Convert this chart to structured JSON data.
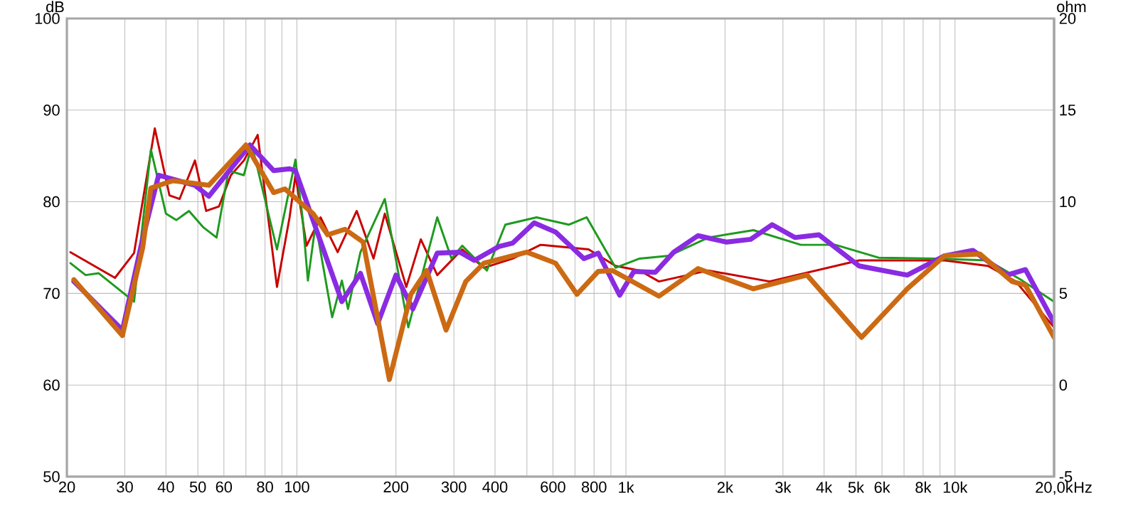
{
  "chart_data": {
    "type": "line",
    "ylabel": "dB",
    "y2label": "ohm",
    "log": "x",
    "grid": true,
    "xlim": [
      20,
      20000
    ],
    "ylim": [
      50,
      100
    ],
    "y2lim": [
      -5,
      20
    ],
    "xticks": [
      20,
      30,
      40,
      50,
      60,
      {
        "value": 70,
        "label": null
      },
      80,
      {
        "value": 90,
        "label": null
      },
      100,
      200,
      300,
      400,
      {
        "value": 500,
        "label": null
      },
      600,
      {
        "value": 700,
        "label": null
      },
      800,
      {
        "value": 900,
        "label": null
      },
      {
        "value": 1000,
        "label": "1k"
      },
      {
        "value": 2000,
        "label": "2k"
      },
      {
        "value": 3000,
        "label": "3k"
      },
      {
        "value": 4000,
        "label": "4k"
      },
      {
        "value": 5000,
        "label": "5k"
      },
      {
        "value": 6000,
        "label": "6k"
      },
      {
        "value": 7000,
        "label": null
      },
      {
        "value": 8000,
        "label": "8k"
      },
      {
        "value": 9000,
        "label": null
      },
      {
        "value": 10000,
        "label": "10k"
      },
      {
        "value": 20000,
        "label": "20,0k"
      }
    ],
    "xlabel": "Hz",
    "yticks": [
      50,
      60,
      70,
      80,
      90,
      100
    ],
    "y2ticks": [
      -5,
      0,
      5,
      10,
      15,
      20
    ],
    "series": [
      {
        "color": "#c80000",
        "x": [
          20.5,
          28,
          32,
          37,
          41,
          44,
          49,
          53,
          58,
          63,
          69,
          76,
          87,
          95,
          99,
          107,
          118,
          133,
          152,
          171,
          185,
          215,
          238,
          267,
          318,
          370,
          453,
          550,
          770,
          930,
          1100,
          1260,
          1780,
          2730,
          5110,
          9290,
          12600,
          15300,
          20000
        ],
        "values": [
          74.5,
          71.7,
          74.4,
          88,
          80.7,
          80.3,
          84.5,
          79,
          79.5,
          82.9,
          84.5,
          87.3,
          70.7,
          78.3,
          82.9,
          75.2,
          78.3,
          74.5,
          79,
          73.8,
          78.7,
          70.7,
          75.9,
          72,
          74.8,
          72.8,
          73.8,
          75.3,
          74.8,
          73,
          72.5,
          71.3,
          72.5,
          71.3,
          73.6,
          73.6,
          73,
          71.3,
          66.3
        ]
      },
      {
        "color": "#1e9a1e",
        "x": [
          20.5,
          22.8,
          25,
          32,
          36,
          40,
          43,
          47,
          52,
          57,
          62,
          69,
          73,
          87,
          99,
          104,
          108,
          114,
          128,
          137,
          143,
          156,
          185,
          218,
          267,
          295,
          318,
          378,
          430,
          535,
          670,
          760,
          930,
          1100,
          1350,
          1780,
          2440,
          3400,
          4330,
          5860,
          8700,
          12600,
          16000,
          20000
        ],
        "values": [
          73.3,
          72,
          72.2,
          69.1,
          85.7,
          78.7,
          78,
          79,
          77.2,
          76.1,
          83.4,
          82.9,
          86.2,
          74.8,
          84.6,
          78.3,
          71.4,
          77.6,
          67.4,
          71.4,
          68.3,
          74.5,
          80.3,
          66.3,
          78.3,
          73.8,
          75.2,
          72.5,
          77.5,
          78.3,
          77.5,
          78.3,
          72.8,
          73.8,
          74.1,
          76.1,
          76.9,
          75.3,
          75.3,
          73.9,
          73.8,
          73.6,
          71.4,
          69.1
        ]
      },
      {
        "color": "#8a2be2",
        "x": [
          21,
          29.5,
          34,
          38,
          49,
          54,
          72,
          85,
          95,
          99,
          137,
          156,
          176,
          200,
          225,
          267,
          313,
          346,
          410,
          453,
          526,
          611,
          745,
          824,
          957,
          1057,
          1228,
          1397,
          1655,
          2020,
          2393,
          2780,
          3260,
          3860,
          5110,
          7160,
          9290,
          11330,
          14390,
          16370,
          20000
        ],
        "values": [
          71.3,
          66,
          76,
          82.9,
          81.8,
          80.6,
          86.2,
          83.4,
          83.6,
          83.4,
          69.1,
          72.2,
          66.7,
          72,
          68.3,
          74.4,
          74.5,
          73.6,
          75.1,
          75.5,
          77.7,
          76.7,
          73.8,
          74.4,
          69.8,
          72.4,
          72.3,
          74.5,
          76.3,
          75.6,
          75.9,
          77.5,
          76.1,
          76.4,
          73,
          72,
          74.1,
          74.7,
          72,
          72.6,
          66.8
        ]
      },
      {
        "color": "#cc6a14",
        "x": [
          21,
          29.5,
          34,
          36,
          42,
          54,
          70,
          85,
          92,
          112,
          124,
          140,
          159,
          191,
          222,
          248,
          284,
          326,
          370,
          500,
          611,
          710,
          824,
          910,
          1260,
          1655,
          2440,
          3550,
          5200,
          7160,
          9290,
          11900,
          14900,
          16370,
          20000
        ],
        "values": [
          71.5,
          65.4,
          75,
          81.5,
          82.3,
          81.8,
          86.2,
          81,
          81.4,
          78.7,
          76.4,
          77,
          75.6,
          60.6,
          69.9,
          72.5,
          66,
          71.3,
          73.3,
          74.5,
          73.3,
          69.9,
          72.4,
          72.5,
          69.7,
          72.7,
          70.5,
          72,
          65.2,
          70.5,
          74.1,
          74.3,
          71.3,
          70.9,
          65.2
        ]
      }
    ]
  }
}
